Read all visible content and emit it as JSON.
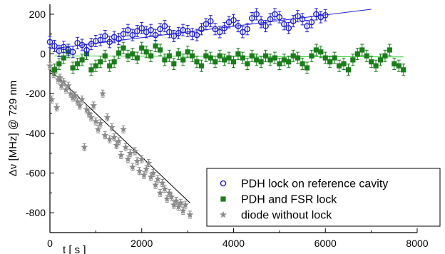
{
  "chart_data": {
    "type": "scatter",
    "xlabel": "t [ s ]",
    "ylabel": "Δν [MHz] @ 729 nm",
    "xlim": [
      0,
      8000
    ],
    "ylim": [
      -900,
      250
    ],
    "x_ticks": [
      0,
      2000,
      4000,
      6000,
      8000
    ],
    "y_ticks": [
      -800,
      -600,
      -400,
      -200,
      0,
      200
    ],
    "grid": false,
    "legend_position": "bottom-right",
    "series": [
      {
        "name": "PDH lock on reference cavity",
        "marker": "open-circle",
        "color": "#1f1fd6",
        "fit_line": {
          "x": [
            0,
            7000
          ],
          "y": [
            25,
            225
          ]
        },
        "points": [
          [
            0,
            60
          ],
          [
            100,
            40
          ],
          [
            200,
            15
          ],
          [
            300,
            35
          ],
          [
            400,
            20
          ],
          [
            500,
            10
          ],
          [
            600,
            55
          ],
          [
            700,
            45
          ],
          [
            800,
            20
          ],
          [
            900,
            50
          ],
          [
            1000,
            65
          ],
          [
            1100,
            70
          ],
          [
            1200,
            90
          ],
          [
            1300,
            60
          ],
          [
            1400,
            85
          ],
          [
            1500,
            75
          ],
          [
            1600,
            100
          ],
          [
            1700,
            120
          ],
          [
            1800,
            95
          ],
          [
            1900,
            115
          ],
          [
            2000,
            130
          ],
          [
            2100,
            110
          ],
          [
            2200,
            120
          ],
          [
            2300,
            95
          ],
          [
            2400,
            125
          ],
          [
            2500,
            140
          ],
          [
            2600,
            110
          ],
          [
            2700,
            90
          ],
          [
            2800,
            105
          ],
          [
            2900,
            120
          ],
          [
            3000,
            115
          ],
          [
            3100,
            100
          ],
          [
            3200,
            95
          ],
          [
            3300,
            125
          ],
          [
            3400,
            150
          ],
          [
            3500,
            165
          ],
          [
            3600,
            125
          ],
          [
            3700,
            110
          ],
          [
            3800,
            130
          ],
          [
            3900,
            160
          ],
          [
            4000,
            170
          ],
          [
            4100,
            140
          ],
          [
            4200,
            110
          ],
          [
            4300,
            125
          ],
          [
            4400,
            180
          ],
          [
            4500,
            200
          ],
          [
            4600,
            160
          ],
          [
            4700,
            140
          ],
          [
            4800,
            175
          ],
          [
            4900,
            200
          ],
          [
            5000,
            185
          ],
          [
            5100,
            150
          ],
          [
            5200,
            130
          ],
          [
            5300,
            165
          ],
          [
            5400,
            190
          ],
          [
            5500,
            175
          ],
          [
            5600,
            140
          ],
          [
            5700,
            160
          ],
          [
            5800,
            200
          ],
          [
            5900,
            185
          ],
          [
            6000,
            195
          ]
        ]
      },
      {
        "name": "PDH and FSR lock",
        "marker": "filled-square",
        "color": "#1a7d1a",
        "fit_line": {
          "x": [
            100,
            7700
          ],
          "y": [
            -10,
            -15
          ]
        },
        "points": [
          [
            100,
            -80
          ],
          [
            200,
            -50
          ],
          [
            300,
            -20
          ],
          [
            400,
            10
          ],
          [
            500,
            -70
          ],
          [
            600,
            -50
          ],
          [
            700,
            -30
          ],
          [
            800,
            0
          ],
          [
            900,
            -80
          ],
          [
            1000,
            -60
          ],
          [
            1100,
            -40
          ],
          [
            1200,
            -10
          ],
          [
            1300,
            -60
          ],
          [
            1400,
            -40
          ],
          [
            1500,
            5
          ],
          [
            1600,
            30
          ],
          [
            1700,
            -10
          ],
          [
            1800,
            0
          ],
          [
            1900,
            -20
          ],
          [
            2000,
            30
          ],
          [
            2100,
            10
          ],
          [
            2200,
            -10
          ],
          [
            2300,
            40
          ],
          [
            2400,
            20
          ],
          [
            2500,
            -30
          ],
          [
            2600,
            -10
          ],
          [
            2700,
            -50
          ],
          [
            2800,
            0
          ],
          [
            2900,
            -30
          ],
          [
            3000,
            10
          ],
          [
            3100,
            -10
          ],
          [
            3200,
            -40
          ],
          [
            3300,
            -60
          ],
          [
            3400,
            -10
          ],
          [
            3500,
            -20
          ],
          [
            3600,
            -40
          ],
          [
            3700,
            -10
          ],
          [
            3800,
            -30
          ],
          [
            3900,
            -20
          ],
          [
            4000,
            -40
          ],
          [
            4100,
            0
          ],
          [
            4200,
            -20
          ],
          [
            4300,
            -50
          ],
          [
            4400,
            -10
          ],
          [
            4500,
            -30
          ],
          [
            4600,
            -40
          ],
          [
            4700,
            -10
          ],
          [
            4800,
            -30
          ],
          [
            4900,
            -20
          ],
          [
            5000,
            -50
          ],
          [
            5100,
            -30
          ],
          [
            5200,
            -40
          ],
          [
            5300,
            -10
          ],
          [
            5400,
            -20
          ],
          [
            5500,
            -50
          ],
          [
            5600,
            -70
          ],
          [
            5700,
            -10
          ],
          [
            5800,
            20
          ],
          [
            5900,
            10
          ],
          [
            6000,
            -20
          ],
          [
            6100,
            -40
          ],
          [
            6200,
            -20
          ],
          [
            6300,
            -60
          ],
          [
            6400,
            -50
          ],
          [
            6500,
            -80
          ],
          [
            6600,
            -30
          ],
          [
            6700,
            0
          ],
          [
            6800,
            20
          ],
          [
            6900,
            -10
          ],
          [
            7000,
            -40
          ],
          [
            7100,
            -60
          ],
          [
            7200,
            -30
          ],
          [
            7300,
            -10
          ],
          [
            7400,
            20
          ],
          [
            7500,
            -50
          ],
          [
            7600,
            -60
          ],
          [
            7700,
            -80
          ]
        ]
      },
      {
        "name": "diode without lock",
        "marker": "star",
        "color": "#8a8a8a",
        "fit_line": {
          "x": [
            0,
            3050
          ],
          "y": [
            -80,
            -750
          ]
        },
        "points": [
          [
            0,
            -60
          ],
          [
            40,
            -230
          ],
          [
            80,
            -100
          ],
          [
            120,
            -80
          ],
          [
            150,
            -270
          ],
          [
            180,
            -130
          ],
          [
            220,
            -120
          ],
          [
            250,
            -160
          ],
          [
            300,
            -140
          ],
          [
            350,
            -180
          ],
          [
            400,
            -160
          ],
          [
            450,
            -200
          ],
          [
            500,
            -220
          ],
          [
            550,
            -210
          ],
          [
            600,
            -240
          ],
          [
            650,
            -260
          ],
          [
            700,
            -230
          ],
          [
            750,
            -470
          ],
          [
            800,
            -280
          ],
          [
            850,
            -300
          ],
          [
            900,
            -320
          ],
          [
            950,
            -260
          ],
          [
            1000,
            -340
          ],
          [
            1050,
            -380
          ],
          [
            1100,
            -350
          ],
          [
            1150,
            -200
          ],
          [
            1200,
            -410
          ],
          [
            1250,
            -320
          ],
          [
            1300,
            -430
          ],
          [
            1350,
            -370
          ],
          [
            1400,
            -420
          ],
          [
            1450,
            -460
          ],
          [
            1500,
            -440
          ],
          [
            1550,
            -510
          ],
          [
            1600,
            -380
          ],
          [
            1650,
            -470
          ],
          [
            1700,
            -530
          ],
          [
            1750,
            -500
          ],
          [
            1800,
            -570
          ],
          [
            1850,
            -490
          ],
          [
            1900,
            -540
          ],
          [
            1950,
            -590
          ],
          [
            2000,
            -530
          ],
          [
            2050,
            -610
          ],
          [
            2100,
            -580
          ],
          [
            2150,
            -550
          ],
          [
            2200,
            -620
          ],
          [
            2250,
            -600
          ],
          [
            2300,
            -660
          ],
          [
            2350,
            -630
          ],
          [
            2400,
            -700
          ],
          [
            2450,
            -650
          ],
          [
            2500,
            -680
          ],
          [
            2550,
            -730
          ],
          [
            2600,
            -700
          ],
          [
            2650,
            -720
          ],
          [
            2700,
            -760
          ],
          [
            2750,
            -740
          ],
          [
            2800,
            -770
          ],
          [
            2850,
            -750
          ],
          [
            2900,
            -790
          ],
          [
            2950,
            -760
          ],
          [
            3050,
            -810
          ]
        ]
      }
    ]
  }
}
